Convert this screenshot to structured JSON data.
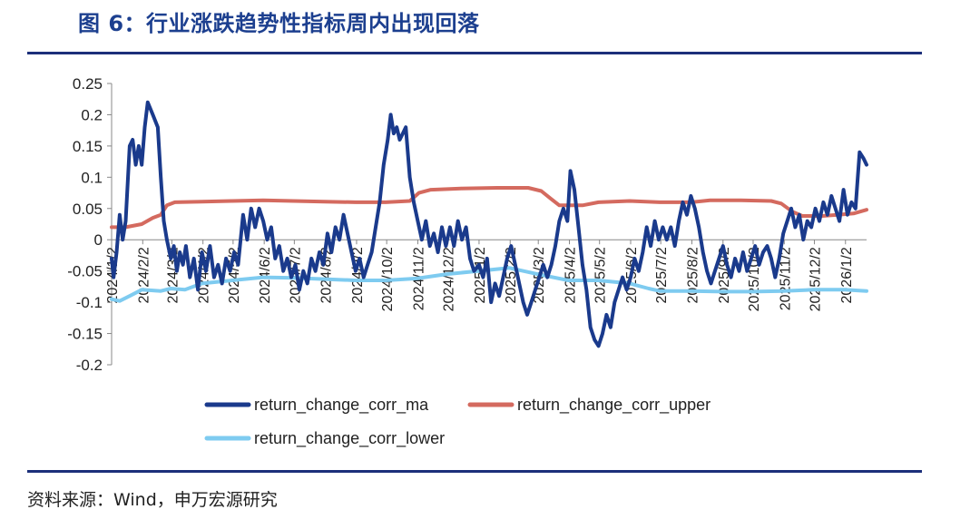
{
  "title": "图 6：行业涨跌趋势性指标周内出现回落",
  "source": "资料来源：Wind，申万宏源研究",
  "colors": {
    "title": "#1c3f8f",
    "rule": "#1c2f7a"
  },
  "chart_data": {
    "type": "line",
    "ylim": [
      -0.2,
      0.25
    ],
    "yticks": [
      0.25,
      0.2,
      0.15,
      0.1,
      0.05,
      0,
      -0.05,
      -0.1,
      -0.15,
      -0.2
    ],
    "ytick_labels": [
      "0.25",
      "0.2",
      "0.15",
      "0.1",
      "0.05",
      "0",
      "-0.05",
      "-0.1",
      "-0.15",
      "-0.2"
    ],
    "x_range": [
      "2024/1/2",
      "2026/1/23"
    ],
    "x_ticks": [
      "2024/1/2",
      "2024/2/2",
      "2024/3/2",
      "2024/4/2",
      "2024/5/2",
      "2024/6/2",
      "2024/7/2",
      "2024/8/2",
      "2024/9/2",
      "2024/10/2",
      "2024/11/2",
      "2024/12/2",
      "2025/1/2",
      "2025/2/2",
      "2025/3/2",
      "2025/4/2",
      "2025/5/2",
      "2025/6/2",
      "2025/7/2",
      "2025/8/2",
      "2025/9/2",
      "2025/10/2",
      "2025/11/2",
      "2025/12/2",
      "2026/1/2"
    ],
    "legend": "bottom",
    "series": [
      {
        "name": "return_change_corr_ma",
        "color": "#1a3a8c",
        "points": [
          [
            "2024/1/2",
            -0.03
          ],
          [
            "2024/1/4",
            -0.06
          ],
          [
            "2024/1/7",
            -0.02
          ],
          [
            "2024/1/10",
            0.04
          ],
          [
            "2024/1/13",
            0.0
          ],
          [
            "2024/1/16",
            0.03
          ],
          [
            "2024/1/20",
            0.15
          ],
          [
            "2024/1/23",
            0.16
          ],
          [
            "2024/1/26",
            0.12
          ],
          [
            "2024/1/29",
            0.15
          ],
          [
            "2024/2/1",
            0.12
          ],
          [
            "2024/2/4",
            0.18
          ],
          [
            "2024/2/7",
            0.22
          ],
          [
            "2024/2/12",
            0.2
          ],
          [
            "2024/2/17",
            0.18
          ],
          [
            "2024/2/20",
            0.1
          ],
          [
            "2024/2/23",
            0.03
          ],
          [
            "2024/2/26",
            0.0
          ],
          [
            "2024/3/1",
            -0.03
          ],
          [
            "2024/3/4",
            -0.01
          ],
          [
            "2024/3/7",
            -0.05
          ],
          [
            "2024/3/10",
            -0.02
          ],
          [
            "2024/3/13",
            -0.04
          ],
          [
            "2024/3/16",
            -0.01
          ],
          [
            "2024/3/20",
            -0.06
          ],
          [
            "2024/3/24",
            -0.03
          ],
          [
            "2024/3/28",
            -0.08
          ],
          [
            "2024/4/1",
            -0.02
          ],
          [
            "2024/4/5",
            -0.05
          ],
          [
            "2024/4/9",
            -0.01
          ],
          [
            "2024/4/13",
            -0.06
          ],
          [
            "2024/4/17",
            -0.04
          ],
          [
            "2024/4/21",
            -0.07
          ],
          [
            "2024/4/25",
            -0.03
          ],
          [
            "2024/4/29",
            -0.05
          ],
          [
            "2024/5/3",
            -0.02
          ],
          [
            "2024/5/7",
            -0.04
          ],
          [
            "2024/5/12",
            0.04
          ],
          [
            "2024/5/16",
            0.0
          ],
          [
            "2024/5/20",
            0.05
          ],
          [
            "2024/5/24",
            0.02
          ],
          [
            "2024/5/28",
            0.05
          ],
          [
            "2024/6/1",
            0.03
          ],
          [
            "2024/6/5",
            0.0
          ],
          [
            "2024/6/9",
            0.02
          ],
          [
            "2024/6/13",
            -0.03
          ],
          [
            "2024/6/17",
            -0.01
          ],
          [
            "2024/6/21",
            -0.05
          ],
          [
            "2024/6/25",
            -0.03
          ],
          [
            "2024/6/29",
            -0.06
          ],
          [
            "2024/7/3",
            -0.04
          ],
          [
            "2024/7/7",
            -0.08
          ],
          [
            "2024/7/11",
            -0.05
          ],
          [
            "2024/7/15",
            -0.07
          ],
          [
            "2024/7/19",
            -0.03
          ],
          [
            "2024/7/23",
            -0.05
          ],
          [
            "2024/7/27",
            -0.02
          ],
          [
            "2024/7/31",
            -0.04
          ],
          [
            "2024/8/4",
            0.01
          ],
          [
            "2024/8/8",
            -0.02
          ],
          [
            "2024/8/12",
            0.02
          ],
          [
            "2024/8/16",
            0.0
          ],
          [
            "2024/8/20",
            0.04
          ],
          [
            "2024/8/24",
            0.01
          ],
          [
            "2024/8/28",
            -0.02
          ],
          [
            "2024/9/1",
            -0.05
          ],
          [
            "2024/9/5",
            -0.03
          ],
          [
            "2024/9/9",
            -0.06
          ],
          [
            "2024/9/13",
            -0.04
          ],
          [
            "2024/9/17",
            -0.02
          ],
          [
            "2024/9/21",
            0.02
          ],
          [
            "2024/9/25",
            0.06
          ],
          [
            "2024/9/29",
            0.12
          ],
          [
            "2024/10/3",
            0.16
          ],
          [
            "2024/10/6",
            0.2
          ],
          [
            "2024/10/9",
            0.17
          ],
          [
            "2024/10/12",
            0.18
          ],
          [
            "2024/10/15",
            0.16
          ],
          [
            "2024/10/18",
            0.17
          ],
          [
            "2024/10/21",
            0.18
          ],
          [
            "2024/10/25",
            0.1
          ],
          [
            "2024/10/29",
            0.06
          ],
          [
            "2024/11/2",
            0.03
          ],
          [
            "2024/11/6",
            0.0
          ],
          [
            "2024/11/10",
            0.03
          ],
          [
            "2024/11/14",
            -0.01
          ],
          [
            "2024/11/18",
            0.01
          ],
          [
            "2024/11/22",
            -0.02
          ],
          [
            "2024/11/26",
            0.02
          ],
          [
            "2024/11/30",
            -0.01
          ],
          [
            "2024/12/4",
            0.02
          ],
          [
            "2024/12/8",
            -0.01
          ],
          [
            "2024/12/12",
            0.03
          ],
          [
            "2024/12/16",
            0.0
          ],
          [
            "2024/12/20",
            0.02
          ],
          [
            "2024/12/24",
            -0.03
          ],
          [
            "2024/12/28",
            -0.05
          ],
          [
            "2025/1/2",
            -0.04
          ],
          [
            "2025/1/6",
            -0.06
          ],
          [
            "2025/1/10",
            -0.03
          ],
          [
            "2025/1/14",
            -0.1
          ],
          [
            "2025/1/18",
            -0.07
          ],
          [
            "2025/1/22",
            -0.09
          ],
          [
            "2025/1/26",
            -0.06
          ],
          [
            "2025/1/30",
            -0.03
          ],
          [
            "2025/2/3",
            -0.01
          ],
          [
            "2025/2/7",
            -0.04
          ],
          [
            "2025/2/11",
            -0.07
          ],
          [
            "2025/2/15",
            -0.1
          ],
          [
            "2025/2/19",
            -0.12
          ],
          [
            "2025/2/23",
            -0.1
          ],
          [
            "2025/2/27",
            -0.08
          ],
          [
            "2025/3/3",
            -0.06
          ],
          [
            "2025/3/7",
            -0.04
          ],
          [
            "2025/3/11",
            -0.06
          ],
          [
            "2025/3/15",
            -0.04
          ],
          [
            "2025/3/19",
            -0.01
          ],
          [
            "2025/3/23",
            0.03
          ],
          [
            "2025/3/27",
            0.05
          ],
          [
            "2025/3/31",
            0.03
          ],
          [
            "2025/4/3",
            0.11
          ],
          [
            "2025/4/7",
            0.08
          ],
          [
            "2025/4/11",
            0.02
          ],
          [
            "2025/4/15",
            -0.04
          ],
          [
            "2025/4/19",
            -0.08
          ],
          [
            "2025/4/23",
            -0.14
          ],
          [
            "2025/4/27",
            -0.16
          ],
          [
            "2025/5/1",
            -0.17
          ],
          [
            "2025/5/5",
            -0.15
          ],
          [
            "2025/5/9",
            -0.12
          ],
          [
            "2025/5/13",
            -0.14
          ],
          [
            "2025/5/17",
            -0.1
          ],
          [
            "2025/5/21",
            -0.08
          ],
          [
            "2025/5/25",
            -0.06
          ],
          [
            "2025/5/29",
            -0.08
          ],
          [
            "2025/6/2",
            -0.06
          ],
          [
            "2025/6/6",
            -0.03
          ],
          [
            "2025/6/10",
            -0.05
          ],
          [
            "2025/6/14",
            -0.02
          ],
          [
            "2025/6/18",
            0.02
          ],
          [
            "2025/6/22",
            -0.01
          ],
          [
            "2025/6/26",
            0.03
          ],
          [
            "2025/6/30",
            0.0
          ],
          [
            "2025/7/4",
            0.02
          ],
          [
            "2025/7/8",
            0.0
          ],
          [
            "2025/7/12",
            0.02
          ],
          [
            "2025/7/16",
            -0.01
          ],
          [
            "2025/7/20",
            0.03
          ],
          [
            "2025/7/24",
            0.06
          ],
          [
            "2025/7/28",
            0.04
          ],
          [
            "2025/8/1",
            0.07
          ],
          [
            "2025/8/5",
            0.05
          ],
          [
            "2025/8/9",
            0.02
          ],
          [
            "2025/8/13",
            -0.02
          ],
          [
            "2025/8/17",
            -0.05
          ],
          [
            "2025/8/21",
            -0.07
          ],
          [
            "2025/8/25",
            -0.05
          ],
          [
            "2025/8/29",
            -0.03
          ],
          [
            "2025/9/2",
            -0.01
          ],
          [
            "2025/9/6",
            -0.04
          ],
          [
            "2025/9/10",
            -0.06
          ],
          [
            "2025/9/14",
            -0.03
          ],
          [
            "2025/9/18",
            -0.05
          ],
          [
            "2025/9/22",
            -0.02
          ],
          [
            "2025/9/26",
            -0.05
          ],
          [
            "2025/9/30",
            -0.03
          ],
          [
            "2025/10/4",
            -0.01
          ],
          [
            "2025/10/8",
            -0.04
          ],
          [
            "2025/10/12",
            -0.02
          ],
          [
            "2025/10/16",
            -0.01
          ],
          [
            "2025/10/20",
            -0.03
          ],
          [
            "2025/10/24",
            -0.06
          ],
          [
            "2025/10/28",
            -0.03
          ],
          [
            "2025/11/1",
            0.01
          ],
          [
            "2025/11/5",
            0.03
          ],
          [
            "2025/11/9",
            0.05
          ],
          [
            "2025/11/13",
            0.02
          ],
          [
            "2025/11/17",
            0.04
          ],
          [
            "2025/11/21",
            0.0
          ],
          [
            "2025/11/25",
            0.03
          ],
          [
            "2025/11/29",
            0.02
          ],
          [
            "2025/12/3",
            0.05
          ],
          [
            "2025/12/7",
            0.03
          ],
          [
            "2025/12/11",
            0.06
          ],
          [
            "2025/12/15",
            0.04
          ],
          [
            "2025/12/19",
            0.07
          ],
          [
            "2025/12/23",
            0.05
          ],
          [
            "2025/12/27",
            0.03
          ],
          [
            "2025/12/31",
            0.08
          ],
          [
            "2026/1/4",
            0.04
          ],
          [
            "2026/1/8",
            0.06
          ],
          [
            "2026/1/12",
            0.05
          ],
          [
            "2026/1/16",
            0.14
          ],
          [
            "2026/1/20",
            0.13
          ],
          [
            "2026/1/23",
            0.12
          ]
        ]
      },
      {
        "name": "return_change_corr_upper",
        "color": "#d46a5f",
        "points": [
          [
            "2024/1/2",
            0.02
          ],
          [
            "2024/1/16",
            0.02
          ],
          [
            "2024/2/1",
            0.025
          ],
          [
            "2024/2/12",
            0.035
          ],
          [
            "2024/2/20",
            0.04
          ],
          [
            "2024/2/26",
            0.055
          ],
          [
            "2024/3/5",
            0.06
          ],
          [
            "2024/4/1",
            0.061
          ],
          [
            "2024/5/1",
            0.062
          ],
          [
            "2024/6/1",
            0.063
          ],
          [
            "2024/7/1",
            0.062
          ],
          [
            "2024/8/1",
            0.061
          ],
          [
            "2024/9/1",
            0.06
          ],
          [
            "2024/10/1",
            0.06
          ],
          [
            "2024/10/25",
            0.062
          ],
          [
            "2024/11/3",
            0.075
          ],
          [
            "2024/11/15",
            0.08
          ],
          [
            "2024/12/15",
            0.082
          ],
          [
            "2025/1/20",
            0.083
          ],
          [
            "2025/2/20",
            0.083
          ],
          [
            "2025/3/5",
            0.078
          ],
          [
            "2025/3/15",
            0.065
          ],
          [
            "2025/3/23",
            0.055
          ],
          [
            "2025/4/1",
            0.055
          ],
          [
            "2025/4/15",
            0.055
          ],
          [
            "2025/5/1",
            0.06
          ],
          [
            "2025/6/1",
            0.062
          ],
          [
            "2025/7/1",
            0.06
          ],
          [
            "2025/8/1",
            0.06
          ],
          [
            "2025/8/20",
            0.063
          ],
          [
            "2025/9/20",
            0.063
          ],
          [
            "2025/10/20",
            0.062
          ],
          [
            "2025/10/30",
            0.058
          ],
          [
            "2025/11/10",
            0.045
          ],
          [
            "2025/11/20",
            0.038
          ],
          [
            "2025/12/10",
            0.038
          ],
          [
            "2025/12/25",
            0.04
          ],
          [
            "2026/1/10",
            0.042
          ],
          [
            "2026/1/23",
            0.048
          ]
        ]
      },
      {
        "name": "return_change_corr_lower",
        "color": "#7ecbf0",
        "points": [
          [
            "2024/1/2",
            -0.095
          ],
          [
            "2024/1/10",
            -0.098
          ],
          [
            "2024/1/20",
            -0.09
          ],
          [
            "2024/2/1",
            -0.08
          ],
          [
            "2024/2/20",
            -0.082
          ],
          [
            "2024/3/1",
            -0.078
          ],
          [
            "2024/3/15",
            -0.08
          ],
          [
            "2024/4/1",
            -0.07
          ],
          [
            "2024/5/1",
            -0.065
          ],
          [
            "2024/6/1",
            -0.06
          ],
          [
            "2024/7/1",
            -0.061
          ],
          [
            "2024/8/1",
            -0.063
          ],
          [
            "2024/9/1",
            -0.065
          ],
          [
            "2024/10/1",
            -0.065
          ],
          [
            "2024/11/1",
            -0.062
          ],
          [
            "2024/12/1",
            -0.055
          ],
          [
            "2025/1/1",
            -0.05
          ],
          [
            "2025/2/1",
            -0.045
          ],
          [
            "2025/3/1",
            -0.055
          ],
          [
            "2025/4/1",
            -0.065
          ],
          [
            "2025/5/1",
            -0.065
          ],
          [
            "2025/6/1",
            -0.07
          ],
          [
            "2025/6/20",
            -0.078
          ],
          [
            "2025/7/1",
            -0.082
          ],
          [
            "2025/8/1",
            -0.082
          ],
          [
            "2025/9/1",
            -0.083
          ],
          [
            "2025/10/1",
            -0.083
          ],
          [
            "2025/11/1",
            -0.082
          ],
          [
            "2025/12/1",
            -0.08
          ],
          [
            "2026/1/1",
            -0.08
          ],
          [
            "2026/1/23",
            -0.082
          ]
        ]
      }
    ]
  }
}
